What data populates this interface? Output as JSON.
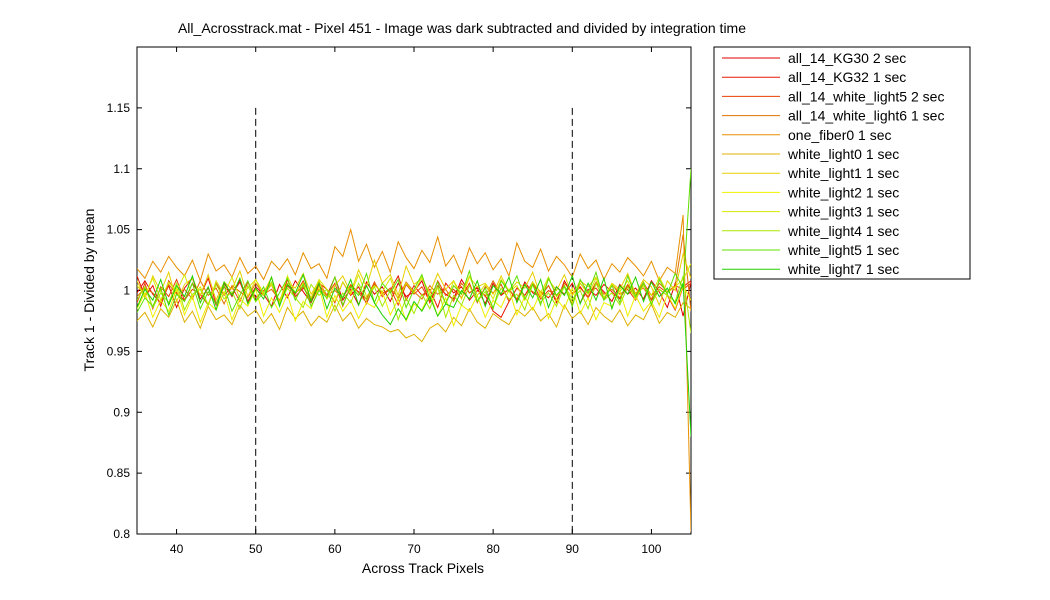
{
  "chart_data": {
    "type": "line",
    "title": "All_Acrosstrack.mat - Pixel 451 - Image was dark subtracted and divided by integration time",
    "xlabel": "Across Track Pixels",
    "ylabel": "Track 1 - Divided by mean",
    "xlim": [
      35,
      105
    ],
    "ylim": [
      0.8,
      1.2
    ],
    "x_ticks": [
      40,
      50,
      60,
      70,
      80,
      90,
      100
    ],
    "y_ticks": [
      0.8,
      0.85,
      0.9,
      0.95,
      1,
      1.05,
      1.1,
      1.15
    ],
    "x_tick_labels": [
      "40",
      "50",
      "60",
      "70",
      "80",
      "90",
      "100"
    ],
    "y_tick_labels": [
      "0.8",
      "0.85",
      "0.9",
      "0.95",
      "1",
      "1.05",
      "1.1",
      "1.15"
    ],
    "grid": false,
    "legend_position": "outside-right-top",
    "vertical_lines": [
      {
        "x": 50,
        "y_range": [
          0.8,
          1.15
        ],
        "style": "dashed",
        "color": "#000000"
      },
      {
        "x": 90,
        "y_range": [
          0.8,
          1.15
        ],
        "style": "dashed",
        "color": "#000000"
      }
    ],
    "x_start": 35,
    "x_step": 1,
    "series": [
      {
        "name": "all_14_KG30 2 sec",
        "color": "#e00000",
        "values": [
          0.998,
          1.008,
          0.997,
          0.99,
          1.004,
          0.986,
          1.002,
          1.01,
          0.993,
          1.002,
          0.988,
          1.006,
          0.995,
          1.009,
          0.991,
          1.003,
          0.997,
          0.987,
          1.005,
          0.994,
          1.008,
          0.999,
          0.99,
          1.004,
          0.996,
          1.011,
          0.992,
          1.001,
          0.988,
          1.007,
          0.997,
          1.003,
          0.991,
          1.006,
          0.995,
          0.999,
          1.008,
          0.99,
          1.004,
          0.997,
          0.993,
          1.009,
          0.998,
          1.002,
          0.989,
          1.006,
          0.996,
          1.001,
          0.992,
          1.007,
          0.998,
          0.995,
          1.004,
          0.99,
          1.008,
          0.997,
          1.003,
          0.994,
          1.006,
          0.999,
          0.991,
          1.005,
          0.997,
          1.002,
          0.993,
          1.008,
          0.999,
          0.986,
          1.006,
          0.979,
          1.007
        ]
      },
      {
        "name": "all_14_KG32 1 sec",
        "color": "#e81800",
        "values": [
          1.012,
          0.995,
          1.004,
          0.987,
          1.008,
          0.998,
          0.992,
          1.006,
          0.996,
          1.01,
          0.989,
          1.003,
          0.997,
          1.007,
          0.991,
          1.001,
          0.996,
          1.005,
          0.988,
          1.009,
          0.995,
          1.002,
          0.994,
          1.006,
          1.001,
          0.99,
          1.007,
          0.996,
          1.003,
          0.989,
          1.005,
          0.998,
          1.0,
          1.012,
          0.992,
          1.004,
          0.996,
          1.001,
          0.986,
          1.006,
          0.998,
          1.003,
          0.992,
          1.0,
          0.996,
          0.983,
          0.978,
          0.991,
          1.002,
          0.996,
          1.005,
          0.999,
          0.994,
          1.003,
          0.997,
          1.006,
          0.99,
          1.001,
          0.996,
          1.005,
          0.999,
          0.993,
          1.004,
          0.996,
          1.007,
          0.992,
          1.001,
          0.996,
          0.984,
          1.003,
          1.008
        ]
      },
      {
        "name": "all_14_white_light5 2 sec",
        "color": "#e84000",
        "values": [
          0.99,
          1.006,
          0.985,
          1.003,
          0.995,
          1.009,
          0.992,
          1.001,
          0.997,
          0.988,
          1.006,
          0.996,
          1.003,
          0.991,
          1.007,
          0.994,
          1.0,
          1.005,
          0.989,
          1.004,
          0.997,
          1.008,
          0.993,
          1.001,
          0.996,
          1.006,
          0.987,
          1.004,
          0.999,
          0.993,
          1.007,
          0.995,
          1.002,
          0.988,
          1.005,
          0.997,
          1.003,
          0.991,
          1.008,
          0.996,
          1.001,
          0.994,
          1.006,
          0.99,
          1.003,
          0.998,
          1.005,
          0.991,
          1.002,
          0.996,
          1.007,
          0.993,
          1.0,
          0.996,
          1.004,
          0.989,
          1.006,
          0.998,
          1.002,
          0.993,
          1.005,
          0.997,
          1.001,
          0.992,
          1.006,
          0.996,
          1.003,
          0.998,
          1.004,
          1.001,
          1.006
        ]
      },
      {
        "name": "all_14_white_light6 1 sec",
        "color": "#e07000",
        "values": [
          0.995,
          1.002,
          0.998,
          0.99,
          1.005,
          0.997,
          1.001,
          0.993,
          1.008,
          0.996,
          1.002,
          0.989,
          1.004,
          0.999,
          0.994,
          1.006,
          0.997,
          1.001,
          0.992,
          1.005,
          0.998,
          1.003,
          0.991,
          1.007,
          0.996,
          1.0,
          0.994,
          1.005,
          0.998,
          0.99,
          1.006,
          0.997,
          1.002,
          0.994,
          1.007,
          0.999,
          0.993,
          1.004,
          0.997,
          1.001,
          0.991,
          1.006,
          0.998,
          1.003,
          0.995,
          1.008,
          0.997,
          1.001,
          0.993,
          1.005,
          0.999,
          0.996,
          1.004,
          0.992,
          1.006,
          0.998,
          1.002,
          0.995,
          1.007,
          0.997,
          1.001,
          0.994,
          1.005,
          0.998,
          1.002,
          0.993,
          1.006,
          0.999,
          1.004,
          1.046,
          0.983
        ]
      },
      {
        "name": "one_fiber0 1 sec",
        "color": "#e89000",
        "values": [
          1.018,
          1.01,
          1.024,
          1.015,
          1.028,
          1.019,
          1.012,
          1.025,
          1.008,
          1.03,
          1.016,
          1.021,
          1.011,
          1.027,
          1.014,
          1.02,
          1.009,
          1.024,
          1.017,
          1.026,
          1.013,
          1.031,
          1.018,
          1.022,
          1.01,
          1.036,
          1.028,
          1.05,
          1.024,
          1.038,
          1.019,
          1.032,
          1.015,
          1.04,
          1.027,
          1.018,
          1.033,
          1.023,
          1.044,
          1.02,
          1.029,
          1.014,
          1.035,
          1.022,
          1.031,
          1.017,
          1.026,
          1.012,
          1.039,
          1.024,
          1.019,
          1.034,
          1.016,
          1.028,
          1.021,
          1.011,
          1.03,
          1.018,
          1.025,
          1.009,
          1.022,
          1.015,
          1.027,
          1.02,
          1.012,
          1.024,
          1.008,
          1.019,
          1.014,
          1.062,
          0.802
        ]
      },
      {
        "name": "white_light0 1 sec",
        "color": "#e0b000",
        "values": [
          0.975,
          0.982,
          0.97,
          0.985,
          0.978,
          0.992,
          0.974,
          0.983,
          0.969,
          0.987,
          0.976,
          0.98,
          0.972,
          0.988,
          0.979,
          0.984,
          0.973,
          0.981,
          0.968,
          0.986,
          0.977,
          0.983,
          0.971,
          0.979,
          0.974,
          0.988,
          0.975,
          0.982,
          0.969,
          0.977,
          0.972,
          0.97,
          0.966,
          0.968,
          0.961,
          0.964,
          0.958,
          0.969,
          0.973,
          0.966,
          0.978,
          0.971,
          0.985,
          0.974,
          0.969,
          0.981,
          0.976,
          0.972,
          0.984,
          0.979,
          0.986,
          0.975,
          0.981,
          0.97,
          0.988,
          0.977,
          0.983,
          0.972,
          0.986,
          0.979,
          0.974,
          0.984,
          0.971,
          0.98,
          0.976,
          0.989,
          0.973,
          0.982,
          0.978,
          0.99,
          0.985
        ]
      },
      {
        "name": "white_light1 1 sec",
        "color": "#e8d000",
        "values": [
          1.008,
          0.994,
          1.012,
          0.999,
          1.015,
          0.991,
          1.005,
          1.01,
          0.996,
          1.013,
          0.992,
          1.007,
          1.001,
          1.016,
          0.995,
          1.009,
          0.998,
          1.011,
          0.99,
          1.006,
          1.002,
          1.014,
          0.997,
          1.008,
          0.993,
          1.004,
          1.012,
          0.998,
          1.017,
          1.003,
          1.025,
          1.006,
          1.013,
          0.996,
          1.02,
          1.005,
          1.01,
          0.998,
          1.014,
          1.001,
          1.008,
          0.993,
          1.011,
          1.003,
          1.006,
          0.997,
          1.012,
          0.999,
          1.007,
          1.002,
          1.015,
          0.995,
          1.009,
          1.0,
          1.013,
          0.996,
          1.008,
          1.003,
          1.011,
          0.994,
          1.006,
          1.001,
          1.014,
          0.997,
          1.009,
          1.003,
          0.988,
          1.008,
          1.0,
          1.03,
          1.01
        ]
      },
      {
        "name": "white_light2 1 sec",
        "color": "#f0f000",
        "values": [
          0.985,
          0.998,
          0.978,
          0.992,
          0.983,
          1.002,
          0.98,
          0.995,
          0.974,
          0.99,
          0.984,
          0.999,
          0.976,
          0.993,
          0.987,
          1.001,
          0.979,
          0.994,
          0.982,
          0.997,
          0.975,
          0.991,
          0.985,
          1.003,
          0.978,
          0.996,
          0.983,
          0.992,
          0.977,
          0.99,
          0.986,
          0.999,
          0.98,
          0.993,
          0.975,
          0.989,
          0.984,
          0.998,
          0.979,
          0.994,
          0.971,
          0.988,
          0.983,
          0.996,
          0.978,
          0.992,
          0.986,
          1.001,
          0.98,
          0.995,
          0.984,
          0.999,
          0.977,
          0.993,
          0.985,
          1.002,
          0.981,
          0.994,
          0.976,
          0.99,
          0.987,
          1.0,
          0.979,
          0.996,
          0.983,
          0.991,
          0.978,
          0.997,
          0.985,
          1.004,
          0.992
        ]
      },
      {
        "name": "white_light3 1 sec",
        "color": "#d8e800",
        "values": [
          1.004,
          0.996,
          1.01,
          0.992,
          1.007,
          0.999,
          1.013,
          0.995,
          1.003,
          0.988,
          1.008,
          0.997,
          1.011,
          0.993,
          1.002,
          1.009,
          0.996,
          1.005,
          0.99,
          1.012,
          0.998,
          1.006,
          0.994,
          1.009,
          1.001,
          0.991,
          1.007,
          0.997,
          1.013,
          0.995,
          1.004,
          0.999,
          1.01,
          0.992,
          1.006,
          0.998,
          1.011,
          0.994,
          1.003,
          0.989,
          1.008,
          0.997,
          1.012,
          0.996,
          1.005,
          0.993,
          1.009,
          0.999,
          1.004,
          0.992,
          1.007,
          0.998,
          1.011,
          0.995,
          1.003,
          0.99,
          1.006,
          0.997,
          1.01,
          0.994,
          1.005,
          0.999,
          1.008,
          0.993,
          1.004,
          0.996,
          1.011,
          0.998,
          1.003,
          1.009,
          1.022
        ]
      },
      {
        "name": "white_light4 1 sec",
        "color": "#a8e800",
        "values": [
          0.992,
          1.003,
          0.986,
          0.998,
          0.99,
          1.006,
          0.984,
          0.997,
          1.001,
          0.988,
          1.005,
          0.993,
          0.999,
          0.985,
          1.004,
          0.991,
          0.998,
          1.007,
          0.989,
          1.002,
          0.994,
          0.986,
          1.005,
          0.996,
          1.001,
          0.983,
          0.998,
          0.99,
          1.006,
          0.992,
          1.003,
          0.987,
          1.0,
          0.976,
          0.994,
          0.981,
          0.997,
          0.985,
          1.003,
          0.978,
          0.996,
          0.988,
          1.004,
          0.991,
          0.999,
          0.986,
          1.002,
          0.993,
          0.997,
          0.984,
          1.005,
          0.99,
          0.998,
          0.987,
          1.004,
          0.993,
          1.0,
          0.985,
          1.006,
          0.992,
          0.998,
          0.988,
          1.003,
          0.994,
          1.007,
          0.989,
          1.001,
          0.996,
          0.991,
          1.012,
          0.965
        ]
      },
      {
        "name": "white_light5 1 sec",
        "color": "#60e000",
        "values": [
          0.982,
          0.994,
          0.987,
          1.002,
          0.98,
          0.997,
          0.991,
          1.006,
          0.985,
          0.999,
          0.989,
          1.004,
          0.983,
          0.996,
          1.008,
          0.991,
          1.003,
          0.986,
          0.998,
          1.01,
          0.992,
          1.005,
          0.987,
          1.0,
          0.994,
          1.011,
          0.988,
          1.003,
          0.996,
          1.014,
          0.99,
          1.006,
          0.998,
          1.009,
          0.986,
          1.001,
          1.013,
          0.993,
          1.007,
          0.989,
          1.004,
          0.997,
          1.016,
          0.991,
          1.002,
          0.985,
          1.008,
          0.999,
          1.012,
          0.993,
          1.005,
          0.988,
          1.01,
          0.996,
          1.003,
          0.987,
          1.009,
          0.998,
          1.015,
          0.992,
          1.004,
          0.99,
          1.012,
          0.995,
          1.006,
          0.988,
          1.009,
          0.997,
          1.014,
          1.002,
          1.1
        ]
      },
      {
        "name": "white_light7 1 sec",
        "color": "#20d000",
        "values": [
          0.986,
          1.001,
          0.992,
          1.009,
          0.988,
          1.004,
          0.995,
          1.012,
          0.99,
          1.003,
          0.984,
          1.007,
          0.996,
          1.01,
          0.989,
          1.002,
          0.993,
          1.011,
          0.987,
          1.005,
          0.998,
          1.013,
          0.991,
          1.006,
          0.985,
          1.002,
          0.994,
          1.009,
          0.988,
          1.004,
          0.99,
          0.98,
          0.972,
          0.985,
          0.976,
          0.991,
          0.983,
          0.995,
          0.979,
          0.989,
          0.986,
          1.0,
          0.993,
          1.008,
          0.987,
          1.004,
          0.997,
          1.011,
          0.99,
          1.005,
          0.994,
          1.009,
          0.986,
          1.003,
          0.996,
          1.012,
          0.989,
          1.006,
          0.992,
          1.01,
          0.985,
          1.004,
          0.997,
          1.011,
          0.991,
          1.007,
          0.995,
          1.002,
          0.989,
          1.006,
          0.88
        ]
      }
    ]
  }
}
